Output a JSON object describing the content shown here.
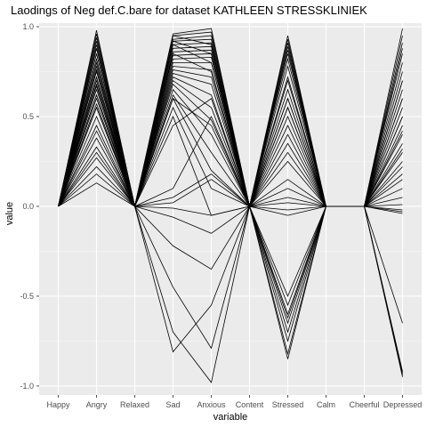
{
  "chart_data": {
    "type": "line",
    "title": "Laodings of Neg def.C.bare for dataset KATHLEEN STRESSKLINIEK",
    "xlabel": "variable",
    "ylabel": "value",
    "categories": [
      "Happy",
      "Angry",
      "Relaxed",
      "Sad",
      "Anxious",
      "Content",
      "Stressed",
      "Calm",
      "Cheerful",
      "Depressed"
    ],
    "yticks": [
      1.0,
      0.5,
      0.0,
      -0.5,
      -1.0
    ],
    "ytick_labels": [
      "1.0",
      "0.5",
      "0.0",
      "-0.5",
      "-1.0"
    ],
    "ylim": [
      -1.05,
      1.02
    ],
    "grid": true,
    "legend": "none",
    "colors": {
      "panel": "#ebebeb",
      "grid_major": "#ffffff",
      "grid_minor": "#f5f5f5",
      "line": "#000000",
      "tick": "#4d4d4d"
    },
    "series": [
      {
        "values": [
          0,
          0.98,
          0,
          0.96,
          0.99,
          0,
          0.95,
          0,
          0,
          0.99
        ]
      },
      {
        "values": [
          0,
          0.96,
          0,
          0.95,
          0.97,
          0,
          0.93,
          0,
          0,
          0.95
        ]
      },
      {
        "values": [
          0,
          0.94,
          0,
          0.93,
          0.95,
          0,
          0.91,
          0,
          0,
          0.91
        ]
      },
      {
        "values": [
          0,
          0.92,
          0,
          0.92,
          0.93,
          0,
          0.89,
          0,
          0,
          0.88
        ]
      },
      {
        "values": [
          0,
          0.9,
          0,
          0.9,
          0.91,
          0,
          0.87,
          0,
          0,
          0.85
        ]
      },
      {
        "values": [
          0,
          0.88,
          0,
          0.88,
          0.89,
          0,
          0.85,
          0,
          0,
          0.8
        ]
      },
      {
        "values": [
          0,
          0.85,
          0,
          0.86,
          0.87,
          0,
          0.82,
          0,
          0,
          0.75
        ]
      },
      {
        "values": [
          0,
          0.82,
          0,
          0.84,
          0.85,
          0,
          0.78,
          0,
          0,
          0.7
        ]
      },
      {
        "values": [
          0,
          0.8,
          0,
          0.82,
          0.83,
          0,
          0.72,
          0,
          0,
          0.65
        ]
      },
      {
        "values": [
          0,
          0.78,
          0,
          0.8,
          0.8,
          0,
          0.65,
          0,
          0,
          0.6
        ]
      },
      {
        "values": [
          0,
          0.75,
          0,
          0.78,
          0.76,
          0,
          0.6,
          0,
          0,
          0.55
        ]
      },
      {
        "values": [
          0,
          0.72,
          0,
          0.76,
          0.72,
          0,
          0.55,
          0,
          0,
          0.5
        ]
      },
      {
        "values": [
          0,
          0.7,
          0,
          0.74,
          0.68,
          0,
          0.5,
          0,
          0,
          0.45
        ]
      },
      {
        "values": [
          0,
          0.67,
          0,
          0.72,
          0.62,
          0,
          0.45,
          0,
          0,
          0.4
        ]
      },
      {
        "values": [
          0,
          0.65,
          0,
          0.7,
          0.55,
          0,
          0.4,
          0,
          0,
          0.32
        ]
      },
      {
        "values": [
          0,
          0.62,
          0,
          0.68,
          0.48,
          0,
          0.35,
          0,
          0,
          0.25
        ]
      },
      {
        "values": [
          0,
          0.6,
          0,
          0.65,
          0.4,
          0,
          0.3,
          0,
          0,
          0.22
        ]
      },
      {
        "values": [
          0,
          0.57,
          0,
          0.62,
          0.3,
          0,
          0.25,
          0,
          0,
          0.15
        ]
      },
      {
        "values": [
          0,
          0.55,
          0,
          0.6,
          0.2,
          0,
          0.15,
          0,
          0,
          0.1
        ]
      },
      {
        "values": [
          0,
          0.5,
          0,
          0.55,
          0.1,
          0,
          0.1,
          0,
          0,
          0.05
        ]
      },
      {
        "values": [
          0,
          0.45,
          0,
          0.5,
          -0.05,
          0,
          0.05,
          0,
          0,
          0.01
        ]
      },
      {
        "values": [
          0,
          0.42,
          0,
          0.95,
          0.9,
          0,
          0.02,
          0,
          0,
          -0.02
        ]
      },
      {
        "values": [
          0,
          0.38,
          0,
          0.92,
          0.85,
          0,
          -0.02,
          0,
          0,
          -0.03
        ]
      },
      {
        "values": [
          0,
          0.33,
          0,
          0.9,
          0.8,
          0,
          -0.05,
          0,
          0,
          -0.04
        ]
      },
      {
        "values": [
          0,
          0.3,
          0,
          0.85,
          0.75,
          0,
          -0.6,
          0,
          0,
          -0.65
        ]
      },
      {
        "values": [
          0,
          0.27,
          0,
          0.05,
          0.18,
          0,
          -0.65,
          0,
          0,
          -0.92
        ]
      },
      {
        "values": [
          0,
          0.22,
          0,
          0.02,
          0.15,
          0,
          -0.7,
          0,
          0,
          -0.95
        ]
      },
      {
        "values": [
          0,
          0.18,
          0,
          -0.01,
          -0.05,
          0,
          -0.75,
          0,
          0,
          -0.94
        ]
      },
      {
        "values": [
          0,
          0.13,
          0,
          -0.06,
          -0.15,
          0,
          -0.85,
          0,
          0,
          -0.93
        ]
      },
      {
        "values": [
          0,
          0.55,
          0,
          -0.22,
          -0.35,
          0,
          -0.55,
          0,
          0,
          0.3
        ]
      },
      {
        "values": [
          0,
          0.62,
          0,
          -0.45,
          -0.79,
          0,
          -0.5,
          0,
          0,
          0.18
        ]
      },
      {
        "values": [
          0,
          0.68,
          0,
          -0.7,
          -0.98,
          0,
          -0.82,
          0,
          0,
          0.35
        ]
      },
      {
        "values": [
          0,
          0.72,
          0,
          -0.81,
          -0.55,
          0,
          -0.62,
          0,
          0,
          0.42
        ]
      },
      {
        "values": [
          0,
          0.85,
          0,
          0.1,
          0.5,
          0,
          0.6,
          0,
          0,
          0.6
        ]
      },
      {
        "values": [
          0,
          0.88,
          0,
          0.45,
          0.6,
          0,
          0.7,
          0,
          0,
          0.7
        ]
      },
      {
        "values": [
          0,
          0.76,
          0,
          0.6,
          0.45,
          0,
          0.55,
          0,
          0,
          0.5
        ]
      }
    ]
  }
}
